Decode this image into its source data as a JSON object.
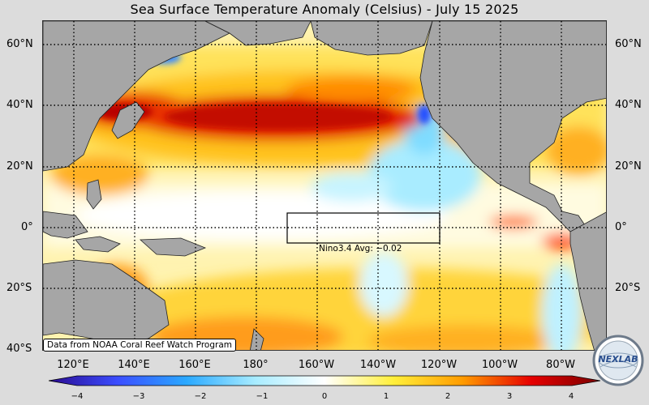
{
  "title": "Sea Surface Temperature Anomaly (Celsius) - July 15 2025",
  "map": {
    "lat_labels": [
      "60°N",
      "40°N",
      "20°N",
      "0°",
      "20°S",
      "40°S"
    ],
    "lon_labels": [
      "120°E",
      "140°E",
      "160°E",
      "180°",
      "160°W",
      "140°W",
      "120°W",
      "100°W",
      "80°W"
    ],
    "land_color": "#a6a6a6",
    "grid_style": "dotted"
  },
  "nino_box": {
    "label": "Nino3.4 Avg: −0.02",
    "value": -0.02
  },
  "credit": "Data from NOAA Coral Reef Watch Program",
  "colorbar": {
    "ticks": [
      "−4",
      "−3",
      "−2",
      "−1",
      "0",
      "1",
      "2",
      "3",
      "4"
    ],
    "stops": [
      "#2a0a8f",
      "#3b4dff",
      "#2aa9ff",
      "#a8ecff",
      "#ffffff",
      "#ffef3a",
      "#ff9c00",
      "#e60000",
      "#7a0000"
    ]
  },
  "logo": {
    "text": "NEXLAB"
  }
}
